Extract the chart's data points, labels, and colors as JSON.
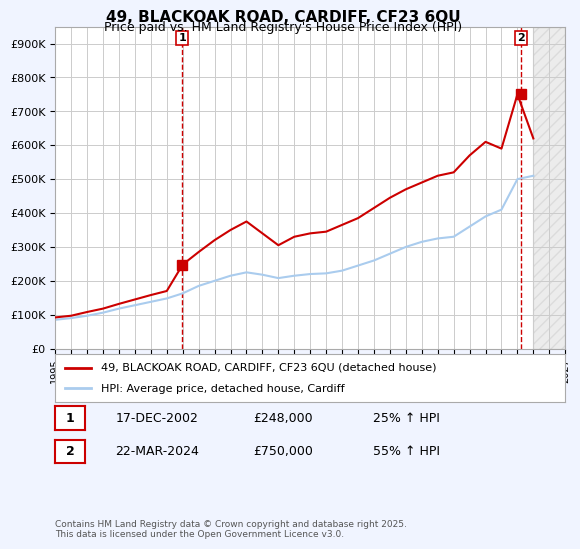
{
  "title": "49, BLACKOAK ROAD, CARDIFF, CF23 6QU",
  "subtitle": "Price paid vs. HM Land Registry's House Price Index (HPI)",
  "ylim": [
    0,
    950000
  ],
  "yticks": [
    0,
    100000,
    200000,
    300000,
    400000,
    500000,
    600000,
    700000,
    800000,
    900000
  ],
  "ytick_labels": [
    "£0",
    "£100K",
    "£200K",
    "£300K",
    "£400K",
    "£500K",
    "£600K",
    "£700K",
    "£800K",
    "£900K"
  ],
  "xlim_start": 1995,
  "xlim_end": 2027,
  "xticks": [
    1995,
    1996,
    1997,
    1998,
    1999,
    2000,
    2001,
    2002,
    2003,
    2004,
    2005,
    2006,
    2007,
    2008,
    2009,
    2010,
    2011,
    2012,
    2013,
    2014,
    2015,
    2016,
    2017,
    2018,
    2019,
    2020,
    2021,
    2022,
    2023,
    2024,
    2025,
    2026,
    2027
  ],
  "bg_color": "#f0f0ff",
  "plot_bg_color": "#ffffff",
  "grid_color": "#cccccc",
  "red_line_color": "#cc0000",
  "blue_line_color": "#aaccee",
  "sale1_year": 2002.96,
  "sale1_price": 248000,
  "sale2_year": 2024.22,
  "sale2_price": 750000,
  "legend_label1": "49, BLACKOAK ROAD, CARDIFF, CF23 6QU (detached house)",
  "legend_label2": "HPI: Average price, detached house, Cardiff",
  "table_row1": [
    "1",
    "17-DEC-2002",
    "£248,000",
    "25% ↑ HPI"
  ],
  "table_row2": [
    "2",
    "22-MAR-2024",
    "£750,000",
    "55% ↑ HPI"
  ],
  "footer": "Contains HM Land Registry data © Crown copyright and database right 2025.\nThis data is licensed under the Open Government Licence v3.0.",
  "hpi_years": [
    1995,
    1996,
    1997,
    1998,
    1999,
    2000,
    2001,
    2002,
    2003,
    2004,
    2005,
    2006,
    2007,
    2008,
    2009,
    2010,
    2011,
    2012,
    2013,
    2014,
    2015,
    2016,
    2017,
    2018,
    2019,
    2020,
    2021,
    2022,
    2023,
    2024,
    2025
  ],
  "hpi_values": [
    85000,
    90000,
    97000,
    106000,
    118000,
    128000,
    138000,
    148000,
    163000,
    185000,
    200000,
    215000,
    225000,
    218000,
    208000,
    215000,
    220000,
    222000,
    230000,
    245000,
    260000,
    280000,
    300000,
    315000,
    325000,
    330000,
    360000,
    390000,
    410000,
    500000,
    510000
  ],
  "price_years": [
    1995,
    1996,
    1997,
    1998,
    1999,
    2000,
    2001,
    2002,
    2003,
    2004,
    2005,
    2006,
    2007,
    2008,
    2009,
    2010,
    2011,
    2012,
    2013,
    2014,
    2015,
    2016,
    2017,
    2018,
    2019,
    2020,
    2021,
    2022,
    2023,
    2024,
    2025
  ],
  "price_values": [
    92000,
    97000,
    108000,
    118000,
    132000,
    145000,
    158000,
    170000,
    248000,
    285000,
    320000,
    350000,
    375000,
    340000,
    305000,
    330000,
    340000,
    345000,
    365000,
    385000,
    415000,
    445000,
    470000,
    490000,
    510000,
    520000,
    570000,
    610000,
    590000,
    750000,
    620000
  ]
}
